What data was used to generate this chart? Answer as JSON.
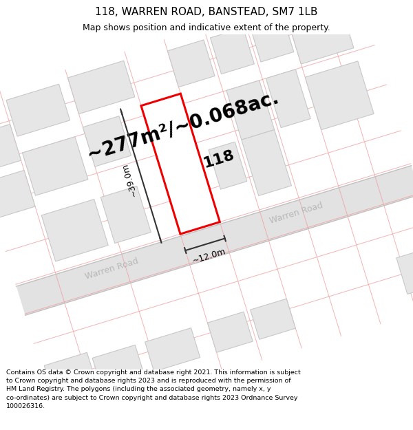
{
  "title": "118, WARREN ROAD, BANSTEAD, SM7 1LB",
  "subtitle": "Map shows position and indicative extent of the property.",
  "area_text": "~277m²/~0.068ac.",
  "house_number": "118",
  "dim_width": "~12.0m",
  "dim_height": "~39.0m",
  "road_name": "Warren Road",
  "footer": "Contains OS data © Crown copyright and database right 2021. This information is subject\nto Crown copyright and database rights 2023 and is reproduced with the permission of\nHM Land Registry. The polygons (including the associated geometry, namely x, y\nco-ordinates) are subject to Crown copyright and database rights 2023 Ordnance Survey\n100026316.",
  "bg_color": "#ffffff",
  "map_bg": "#f8f8f8",
  "road_color": "#e2e2e2",
  "road_line_color": "#cccccc",
  "building_fill": "#e6e6e6",
  "building_edge": "#c8c8c8",
  "highlight_fill": "#ffffff",
  "highlight_edge": "#ee0000",
  "grid_line_color": "#f0a0a0",
  "dim_line_color": "#333333",
  "title_fontsize": 11,
  "subtitle_fontsize": 9,
  "area_fontsize": 20,
  "label_fontsize": 16,
  "footer_fontsize": 6.8,
  "map_rotation_deg": 17
}
